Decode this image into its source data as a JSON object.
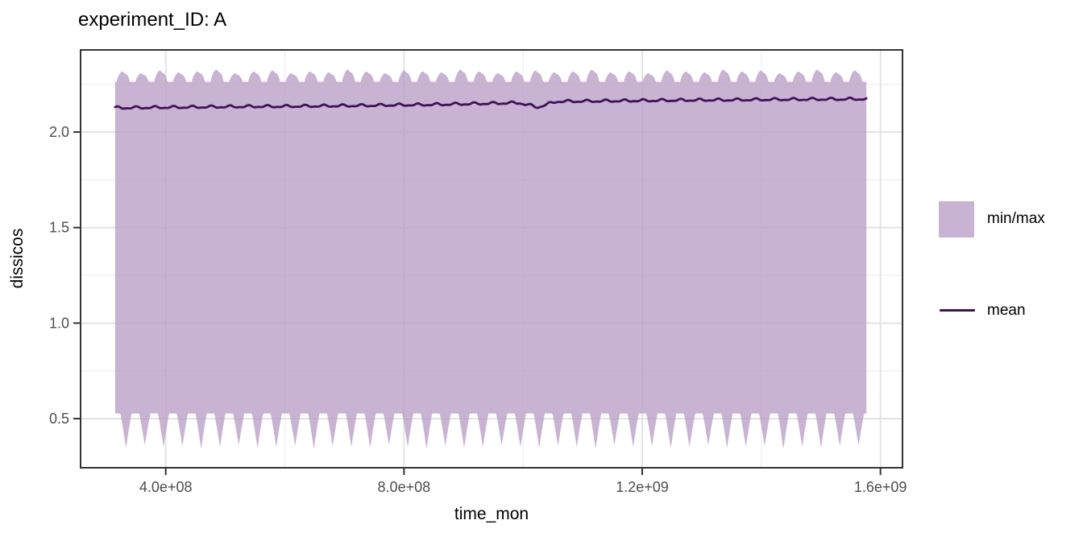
{
  "chart_data": {
    "type": "area",
    "title": "experiment_ID: A",
    "xlabel": "time_mon",
    "ylabel": "dissicos",
    "xlim": [
      257000000,
      1637000000
    ],
    "ylim": [
      0.243,
      2.43
    ],
    "x_major_ticks": [
      400000000,
      800000000,
      1200000000,
      1600000000
    ],
    "x_tick_labels": [
      "4.0e+08",
      "8.0e+08",
      "1.2e+09",
      "1.6e+09"
    ],
    "x_minor_ticks": [
      600000000,
      1000000000,
      1400000000
    ],
    "y_major_ticks": [
      0.5,
      1.0,
      1.5,
      2.0
    ],
    "y_tick_labels": [
      "0.5",
      "1.0",
      "1.5",
      "2.0"
    ],
    "y_minor_ticks": [
      0.75,
      1.25,
      1.75,
      2.25
    ],
    "grid": true,
    "legend_position": "right",
    "colors": {
      "ribbon_fill": "#b89dc6",
      "ribbon_fill_opacity": 0.78,
      "mean_line": "#421059",
      "panel_border": "#333333",
      "grid_major": "#e3e3e3",
      "grid_minor": "#f0f0f0",
      "tick_label": "#4d4d4d",
      "tick_mark": "#333333"
    },
    "time_start": 315000000,
    "cycle_period_seconds": 31536000,
    "n_cycles": 40,
    "series": [
      {
        "name": "min/max",
        "type": "ribbon",
        "max_base": 2.263,
        "max_annual_peaks": [
          2.32,
          2.31,
          2.325,
          2.315,
          2.32,
          2.33,
          2.31,
          2.32,
          2.325,
          2.31,
          2.32,
          2.315,
          2.33,
          2.32,
          2.31,
          2.325,
          2.32,
          2.315,
          2.33,
          2.32,
          2.31,
          2.32,
          2.325,
          2.315,
          2.32,
          2.33,
          2.315,
          2.32,
          2.31,
          2.325,
          2.32,
          2.315,
          2.33,
          2.32,
          2.325,
          2.31,
          2.32,
          2.33,
          2.315,
          2.325
        ],
        "min_ceiling": 0.527,
        "min_annual_troughs": [
          0.345,
          0.36,
          0.35,
          0.355,
          0.34,
          0.35,
          0.36,
          0.345,
          0.35,
          0.355,
          0.34,
          0.355,
          0.35,
          0.345,
          0.36,
          0.35,
          0.34,
          0.355,
          0.345,
          0.35,
          0.36,
          0.35,
          0.345,
          0.355,
          0.35,
          0.34,
          0.36,
          0.35,
          0.355,
          0.345,
          0.35,
          0.36,
          0.345,
          0.35,
          0.355,
          0.34,
          0.35,
          0.345,
          0.355,
          0.36
        ]
      },
      {
        "name": "mean",
        "type": "line",
        "annual_means": [
          2.127,
          2.128,
          2.129,
          2.13,
          2.131,
          2.132,
          2.133,
          2.134,
          2.134,
          2.135,
          2.136,
          2.137,
          2.138,
          2.139,
          2.141,
          2.142,
          2.143,
          2.145,
          2.147,
          2.149,
          2.151,
          2.153,
          2.13,
          2.16,
          2.161,
          2.162,
          2.163,
          2.164,
          2.165,
          2.166,
          2.167,
          2.168,
          2.168,
          2.169,
          2.17,
          2.171,
          2.171,
          2.172,
          2.172,
          2.173
        ],
        "wiggle_amplitude": 0.005,
        "dip_note": "mean dips to 2.13 near t=1.02e9 then recovers"
      }
    ]
  }
}
